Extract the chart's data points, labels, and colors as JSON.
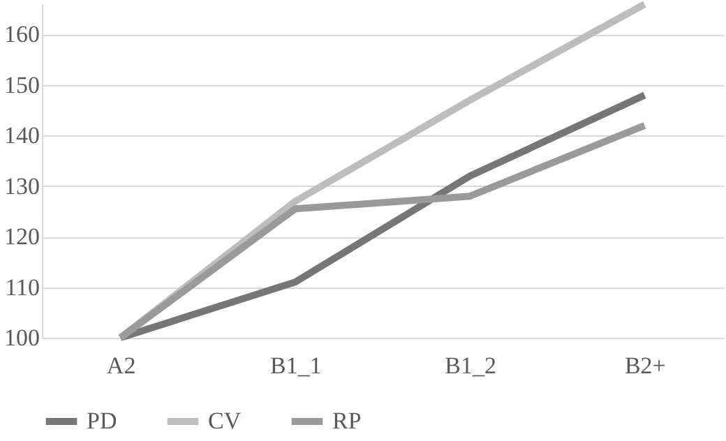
{
  "chart_data": {
    "type": "line",
    "categories": [
      "A2",
      "B1_1",
      "B1_2",
      "B2+"
    ],
    "series": [
      {
        "name": "PD",
        "color": "#767676",
        "values": [
          100,
          111,
          132,
          148
        ]
      },
      {
        "name": "CV",
        "color": "#bdbdbd",
        "values": [
          100,
          127,
          147,
          166
        ]
      },
      {
        "name": "RP",
        "color": "#9a9a9a",
        "values": [
          100,
          125.5,
          128,
          142
        ]
      }
    ],
    "ylim": [
      100,
      166
    ],
    "yticks": [
      100,
      110,
      120,
      130,
      140,
      150,
      160
    ],
    "grid": "y",
    "legend": "bottom",
    "marker": "none",
    "line_style": "solid"
  }
}
